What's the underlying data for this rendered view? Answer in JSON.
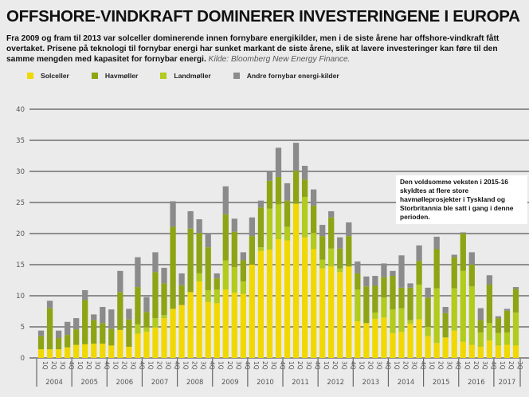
{
  "title": "OFFSHORE-VINDKRAFT DOMINERER INVESTERINGENE I EUROPA",
  "intro": {
    "text": "Fra 2009 og fram til 2013 var solceller dominerende innen fornybare energikilder, men i de siste årene har offshore-vindkraft fått overtaket. Prisene på teknologi til fornybar energi har sunket markant de siste årene, slik at lavere investeringer kan føre til den samme mengden med kapasitet for fornybar energi.",
    "source": "Kilde: Bloomberg New Energy Finance."
  },
  "annotation": "Den voldsomme veksten i 2015-16 skyldtes at flere store havmølleprosjekter i Tyskland og Storbritannia ble satt i gang i denne perioden.",
  "colors": {
    "Solceller": "#f0d800",
    "Havmøller": "#8ea414",
    "Landmøller": "#b2cb1c",
    "Andre fornybar energi-kilder": "#8b8b8b",
    "background": "#ebebeb",
    "gridline": "#6f6f6f"
  },
  "chart_data": {
    "type": "bar",
    "stacked": true,
    "title": "OFFSHORE-VINDKRAFT DOMINERER INVESTERINGENE I EUROPA",
    "xlabel": "",
    "ylabel": "",
    "ylim": [
      0,
      40
    ],
    "yticks": [
      0,
      5,
      10,
      15,
      20,
      25,
      30,
      35,
      40
    ],
    "grid": true,
    "legend_position": "top-left",
    "years": [
      "2004",
      "2005",
      "2006",
      "2007",
      "2008",
      "2009",
      "2010",
      "2011",
      "2012",
      "2013",
      "2014",
      "2015",
      "2016",
      "2017"
    ],
    "quarters_per_year": [
      4,
      4,
      4,
      4,
      4,
      4,
      4,
      4,
      4,
      4,
      4,
      4,
      4,
      3
    ],
    "quarter_labels": [
      "1Q",
      "2Q",
      "3Q",
      "4Q"
    ],
    "categories": [
      "2004 1Q",
      "2004 2Q",
      "2004 3Q",
      "2004 4Q",
      "2005 1Q",
      "2005 2Q",
      "2005 3Q",
      "2005 4Q",
      "2006 1Q",
      "2006 2Q",
      "2006 3Q",
      "2006 4Q",
      "2007 1Q",
      "2007 2Q",
      "2007 3Q",
      "2007 4Q",
      "2008 1Q",
      "2008 2Q",
      "2008 3Q",
      "2008 4Q",
      "2009 1Q",
      "2009 2Q",
      "2009 3Q",
      "2009 4Q",
      "2010 1Q",
      "2010 2Q",
      "2010 3Q",
      "2010 4Q",
      "2011 1Q",
      "2011 2Q",
      "2011 3Q",
      "2011 4Q",
      "2012 1Q",
      "2012 2Q",
      "2012 3Q",
      "2012 4Q",
      "2013 1Q",
      "2013 2Q",
      "2013 3Q",
      "2013 4Q",
      "2014 1Q",
      "2014 2Q",
      "2014 3Q",
      "2014 4Q",
      "2015 1Q",
      "2015 2Q",
      "2015 3Q",
      "2015 4Q",
      "2016 1Q",
      "2016 2Q",
      "2016 3Q",
      "2016 4Q",
      "2017 1Q",
      "2017 2Q",
      "2017 3Q"
    ],
    "series": [
      {
        "name": "Solceller",
        "values": [
          1.4,
          1.4,
          1.4,
          1.7,
          2.1,
          2.2,
          2.3,
          2.3,
          2.0,
          4.5,
          1.8,
          3.9,
          4.2,
          4.9,
          6.4,
          7.9,
          8.5,
          10.6,
          12.3,
          9.0,
          8.8,
          11.0,
          10.5,
          10.3,
          15.0,
          17.2,
          17.4,
          19.1,
          18.9,
          24.8,
          19.4,
          17.5,
          14.4,
          14.7,
          13.8,
          14.7,
          5.9,
          5.6,
          6.3,
          6.5,
          4.0,
          4.2,
          5.5,
          6.2,
          3.5,
          2.4,
          3.3,
          4.4,
          2.6,
          2.1,
          1.8,
          2.8,
          2.0,
          2.1,
          2.0
        ]
      },
      {
        "name": "Landmøller",
        "values": [
          0,
          0,
          0,
          0,
          0,
          0,
          0,
          0,
          0,
          0,
          0,
          1.5,
          0.7,
          1.5,
          0.5,
          0,
          0,
          0,
          1.3,
          1.9,
          2.2,
          4.7,
          4.1,
          2.0,
          0,
          0.6,
          6.6,
          5.6,
          2.2,
          0,
          6.5,
          2.6,
          1.4,
          2.9,
          0.6,
          0,
          5.1,
          0,
          1.0,
          3.2,
          3.8,
          3.8,
          0.6,
          5.6,
          1.5,
          8.8,
          0,
          6.8,
          11.4,
          9.4,
          2.3,
          2.8,
          2.0,
          2.0,
          5.3
        ]
      },
      {
        "name": "Havmøller",
        "values": [
          2.1,
          6.6,
          1.8,
          2.0,
          2.5,
          7.1,
          3.8,
          3.3,
          2.7,
          6.1,
          4.4,
          6.0,
          2.5,
          7.4,
          5.1,
          13.2,
          3.2,
          10.2,
          6.5,
          6.9,
          1.8,
          7.4,
          5.7,
          3.4,
          4.6,
          6.4,
          4.5,
          4.4,
          4.2,
          5.3,
          2.8,
          4.4,
          3.8,
          5.0,
          3.2,
          4.9,
          2.6,
          5.9,
          4.3,
          3.3,
          5.4,
          3.3,
          5.2,
          3.8,
          4.7,
          6.3,
          3.9,
          5.0,
          6.0,
          3.5,
          2.0,
          6.2,
          2.4,
          3.5,
          3.8
        ]
      },
      {
        "name": "Andre fornybar energi-kilder",
        "values": [
          0.9,
          1.2,
          1.2,
          2.1,
          1.8,
          1.6,
          0.9,
          2.6,
          3.1,
          3.4,
          1.7,
          4.8,
          2.4,
          3.2,
          2.5,
          4.1,
          1.9,
          2.8,
          2.2,
          2.3,
          0.8,
          4.5,
          2.1,
          1.3,
          3.0,
          1.1,
          1.4,
          4.7,
          2.8,
          4.5,
          2.2,
          2.6,
          1.8,
          1.0,
          1.8,
          2.2,
          1.9,
          1.6,
          1.6,
          2.2,
          0.8,
          5.2,
          0.7,
          2.5,
          1.6,
          2.0,
          1.0,
          0.4,
          0.2,
          2.0,
          1.9,
          1.5,
          0.3,
          0.3,
          0.3
        ]
      }
    ],
    "legend": [
      "Solceller",
      "Havmøller",
      "Landmøller",
      "Andre fornybar energi-kilder"
    ]
  }
}
